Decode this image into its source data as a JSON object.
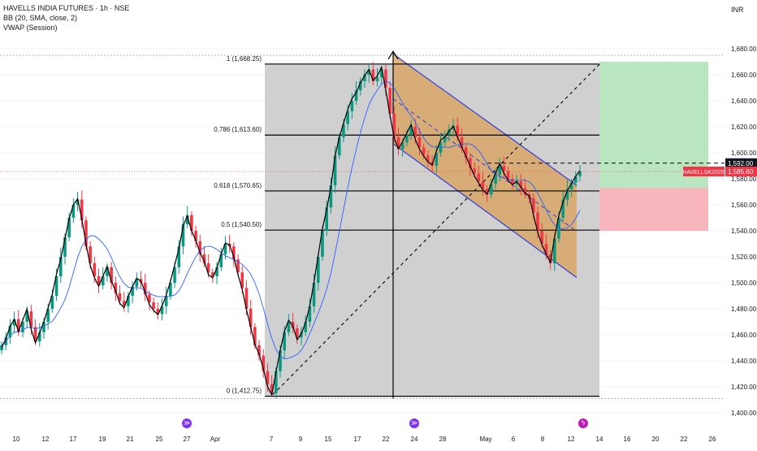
{
  "header": {
    "symbol_line": "HAVELLS INDIA FUTURES · 1h · NSE",
    "indicator_bb": "BB (20, SMA, close, 2)",
    "indicator_vwap": "VWAP (Session)",
    "currency": "INR"
  },
  "colors": {
    "up": "#089981",
    "down": "#f23645",
    "bb": "#2962ff",
    "vwap": "#000000",
    "fib_zone": "#c8c8c8",
    "channel_fill": "#d9a35f",
    "channel_border": "#2f3fe0",
    "target_zone": "#b9e6bf",
    "stop_zone": "#f7b6bd",
    "label_red": "#f23645",
    "label_dark": "#131722"
  },
  "chart_data": {
    "type": "candlestick",
    "x_axis": {
      "tick_labels": [
        "10",
        "12",
        "17",
        "19",
        "21",
        "25",
        "27",
        "Apr",
        "7",
        "9",
        "15",
        "17",
        "22",
        "24",
        "28",
        "May",
        "6",
        "8",
        "12",
        "14",
        "16",
        "20",
        "22",
        "26"
      ]
    },
    "y_axis": {
      "range": [
        1400,
        1690
      ],
      "ticks": [
        1400,
        1420,
        1440,
        1460,
        1480,
        1500,
        1520,
        1540,
        1560,
        1580,
        1600,
        1620,
        1640,
        1660,
        1680
      ]
    },
    "fibonacci": [
      {
        "label": "1 (1,668.25)",
        "value": 1668.25
      },
      {
        "label": "0.786 (1,613.60)",
        "value": 1613.6
      },
      {
        "label": "0.618 (1,570.65)",
        "value": 1570.65
      },
      {
        "label": "0.5 (1,540.50)",
        "value": 1540.5
      },
      {
        "label": "0 (1,412.75)",
        "value": 1412.75
      }
    ],
    "price_labels": [
      {
        "text": "1,592.00",
        "value": 1592.0,
        "style": "dark"
      },
      {
        "text": "HAVELLSK2025",
        "value": 1585.6,
        "style": "red"
      },
      {
        "text": "1,585.60",
        "value": 1585.6,
        "style": "red"
      }
    ],
    "trade_zones": {
      "entry": 1573,
      "target": 1670,
      "stop": 1540
    },
    "channel": {
      "upper_start": 1676,
      "upper_end": 1575,
      "lower_start": 1607,
      "lower_end": 1504
    },
    "price_path": [
      1452,
      1458,
      1467,
      1472,
      1462,
      1470,
      1478,
      1466,
      1455,
      1462,
      1470,
      1480,
      1490,
      1505,
      1520,
      1535,
      1550,
      1560,
      1564,
      1548,
      1528,
      1515,
      1505,
      1498,
      1505,
      1512,
      1500,
      1492,
      1486,
      1482,
      1490,
      1497,
      1503,
      1500,
      1491,
      1485,
      1480,
      1476,
      1482,
      1490,
      1500,
      1512,
      1528,
      1545,
      1552,
      1540,
      1532,
      1522,
      1515,
      1508,
      1505,
      1512,
      1522,
      1530,
      1528,
      1518,
      1508,
      1496,
      1480,
      1466,
      1452,
      1444,
      1432,
      1422,
      1415,
      1432,
      1448,
      1462,
      1470,
      1465,
      1458,
      1462,
      1470,
      1482,
      1500,
      1520,
      1540,
      1558,
      1575,
      1598,
      1612,
      1622,
      1632,
      1640,
      1648,
      1655,
      1660,
      1664,
      1655,
      1658,
      1664,
      1650,
      1630,
      1612,
      1603,
      1608,
      1614,
      1620,
      1612,
      1604,
      1598,
      1593,
      1590,
      1600,
      1608,
      1614,
      1618,
      1621,
      1612,
      1604,
      1596,
      1588,
      1584,
      1578,
      1572,
      1568,
      1576,
      1583,
      1590,
      1586,
      1580,
      1576,
      1578,
      1573,
      1568,
      1565,
      1554,
      1540,
      1530,
      1522,
      1515,
      1534,
      1550,
      1564,
      1572,
      1577,
      1582,
      1585.6
    ]
  }
}
